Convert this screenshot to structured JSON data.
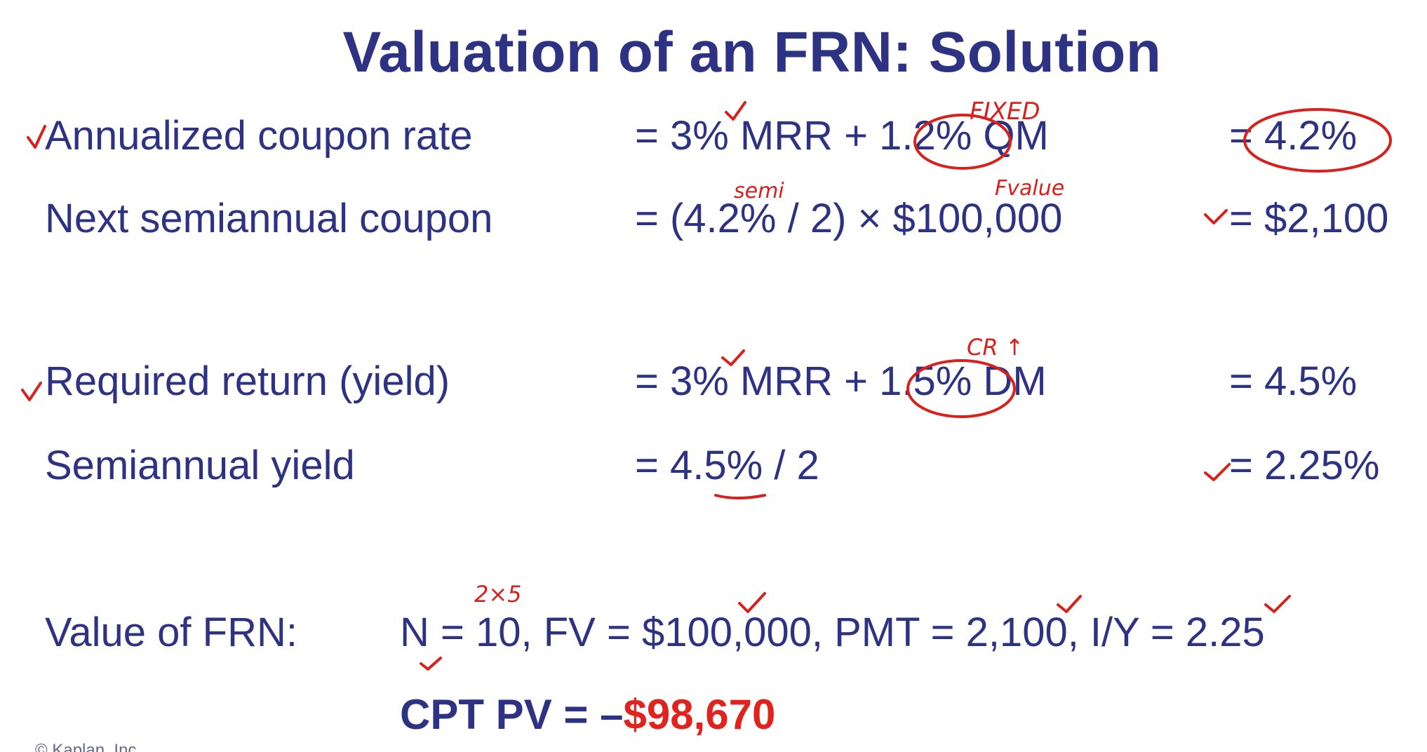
{
  "title": "Valuation of an FRN: Solution",
  "rows": [
    {
      "label": "Annualized coupon rate",
      "expression": "= 3% MRR + 1.2% QM",
      "result": "= 4.2%"
    },
    {
      "label": "Next semiannual coupon",
      "expression": "= (4.2% / 2) × $100,000",
      "result": "= $2,100"
    },
    {
      "label": "Required return (yield)",
      "expression": "= 3% MRR + 1.5% DM",
      "result": "= 4.5%"
    },
    {
      "label": "Semiannual yield",
      "expression": "= 4.5% / 2",
      "result": "= 2.25%"
    }
  ],
  "frn": {
    "label": "Value of FRN:",
    "inputs": "N = 10, FV = $100,000, PMT = 2,100, I/Y = 2.25",
    "compute_prefix": "CPT PV = –",
    "pv_value": "$98,670"
  },
  "annotations": {
    "fixed": "FIXED",
    "semi": "semi",
    "fvalue": "Fvalue",
    "cr": "CR ↑",
    "two_times_five": "2×5"
  },
  "copyright": "© Kaplan, Inc.",
  "colors": {
    "text": "#2e3283",
    "highlight": "#e0231c",
    "ink": "#d8211d"
  }
}
